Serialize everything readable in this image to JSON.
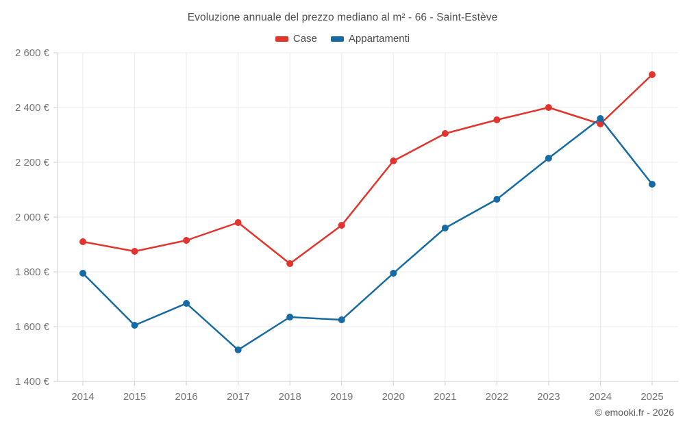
{
  "chart_data": {
    "type": "line",
    "title": "Evoluzione annuale del prezzo mediano al m² - 66 - Saint-Estève",
    "xlabel": "",
    "ylabel": "",
    "categories": [
      "2014",
      "2015",
      "2016",
      "2017",
      "2018",
      "2019",
      "2020",
      "2021",
      "2022",
      "2023",
      "2024",
      "2025"
    ],
    "series": [
      {
        "name": "Case",
        "color": "#e1342d",
        "values": [
          1910,
          1875,
          1915,
          1980,
          1830,
          1970,
          2205,
          2305,
          2355,
          2400,
          2340,
          2520
        ]
      },
      {
        "name": "Appartamenti",
        "color": "#166ba5",
        "values": [
          1795,
          1605,
          1685,
          1515,
          1635,
          1625,
          1795,
          1960,
          2065,
          2215,
          2360,
          2120
        ]
      }
    ],
    "ylim": [
      1400,
      2600
    ],
    "ytick_values": [
      2600,
      2400,
      2200,
      2000,
      1800,
      1600,
      1400
    ],
    "ytick_labels": [
      "2 600 €",
      "2 400 €",
      "2 200 €",
      "2 000 €",
      "1 800 €",
      "1 600 €",
      "1 400 €"
    ],
    "grid": true,
    "legend_position": "top"
  },
  "footer": {
    "credit": "© emooki.fr - 2026"
  }
}
